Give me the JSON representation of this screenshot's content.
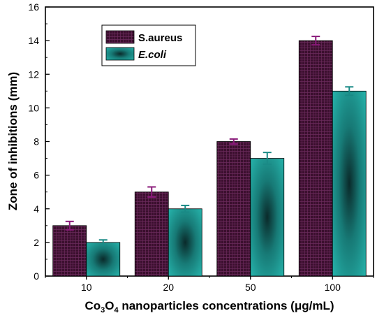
{
  "chart_data": {
    "type": "bar",
    "categories": [
      "10",
      "20",
      "50",
      "100"
    ],
    "series": [
      {
        "name": "S.aureus",
        "values": [
          3,
          5,
          8,
          14
        ],
        "errors": [
          0.25,
          0.3,
          0.15,
          0.25
        ],
        "color": "#3b0f2e",
        "error_color": "#8a1a7a",
        "legend_style": "normal"
      },
      {
        "name": "E.coli",
        "values": [
          2,
          4,
          7,
          11
        ],
        "errors": [
          0.15,
          0.2,
          0.35,
          0.25
        ],
        "color": "#1f8a86",
        "error_color": "#1a8a86",
        "legend_style": "italic"
      }
    ],
    "xlabel_parts": [
      "Co",
      "3",
      "O",
      "4",
      " nanoparticles concentrations (μg/mL)"
    ],
    "ylabel": "Zone of inhibitions (mm)",
    "ylim": [
      0,
      16
    ],
    "yticks": [
      "0",
      "2",
      "4",
      "6",
      "8",
      "10",
      "12",
      "14",
      "16"
    ],
    "grid": false,
    "legend_position": "top-left"
  }
}
